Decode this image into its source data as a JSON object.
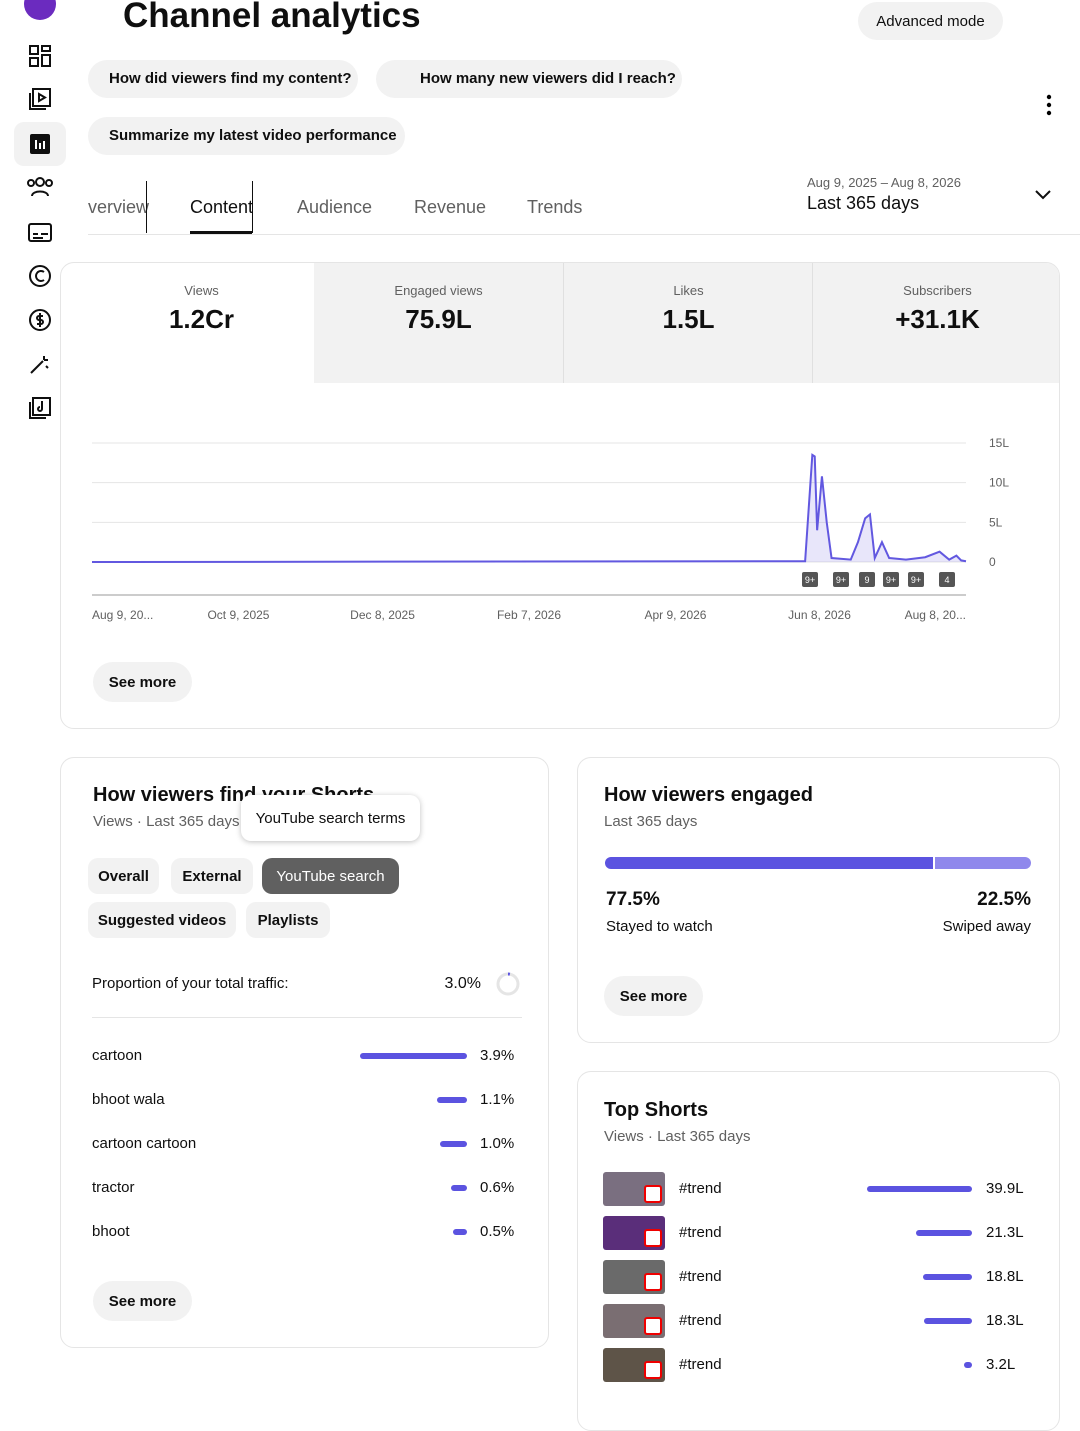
{
  "header": {
    "title": "Channel analytics",
    "advanced_mode": "Advanced mode"
  },
  "suggestions": [
    "How did viewers find my content?",
    "How many new viewers did I reach?",
    "Summarize my latest video performance"
  ],
  "tabs": {
    "items": [
      "verview",
      "Content",
      "Audience",
      "Revenue",
      "Trends"
    ],
    "selected": 1
  },
  "date_range": {
    "dates": "Aug 9, 2025 – Aug 8, 2026",
    "label": "Last 365 days"
  },
  "metrics": {
    "items": [
      {
        "label": "Views",
        "value": "1.2Cr"
      },
      {
        "label": "Engaged views",
        "value": "75.9L"
      },
      {
        "label": "Likes",
        "value": "1.5L"
      },
      {
        "label": "Subscribers",
        "value": "+31.1K"
      }
    ],
    "selected": 0
  },
  "chart_data": {
    "type": "line",
    "x": [
      "2025-08-09",
      "2026-06-02",
      "2026-06-05",
      "2026-06-06",
      "2026-06-07",
      "2026-06-09",
      "2026-06-11",
      "2026-06-13",
      "2026-06-21",
      "2026-06-24",
      "2026-06-27",
      "2026-06-29",
      "2026-07-01",
      "2026-07-04",
      "2026-07-07",
      "2026-07-14",
      "2026-07-22",
      "2026-07-28",
      "2026-08-01",
      "2026-08-04",
      "2026-08-06",
      "2026-08-08"
    ],
    "series": [
      {
        "name": "Views",
        "color": "#6258e0",
        "values": [
          0,
          0.1,
          13.5,
          13.3,
          4,
          10.8,
          5,
          0.5,
          0.3,
          2.5,
          5.5,
          6,
          0.5,
          2.5,
          0.5,
          0.3,
          0.6,
          1.3,
          0.3,
          0.8,
          0.2,
          0.1
        ]
      }
    ],
    "xlim": [
      "2025-08-09",
      "2026-08-08"
    ],
    "xticks": [
      {
        "value": "2025-08-09",
        "label": "Aug 9, 20..."
      },
      {
        "value": "2025-10-09",
        "label": "Oct 9, 2025"
      },
      {
        "value": "2025-12-08",
        "label": "Dec 8, 2025"
      },
      {
        "value": "2026-02-07",
        "label": "Feb 7, 2026"
      },
      {
        "value": "2026-04-09",
        "label": "Apr 9, 2026"
      },
      {
        "value": "2026-06-08",
        "label": "Jun 8, 2026"
      },
      {
        "value": "2026-08-08",
        "label": "Aug 8, 20..."
      }
    ],
    "ylim": [
      0,
      15
    ],
    "yticks": [
      {
        "value": 0,
        "label": "0"
      },
      {
        "value": 5,
        "label": "5L"
      },
      {
        "value": 10,
        "label": "10L"
      },
      {
        "value": 15,
        "label": "15L"
      }
    ],
    "grid": true,
    "markers": [
      "9+",
      "9+",
      "9",
      "9+",
      "9+",
      "4"
    ]
  },
  "overview_see_more": "See more",
  "traffic": {
    "title": "How viewers find your Shorts",
    "subtitle": "Views · Last 365 days",
    "tooltip": "YouTube search terms",
    "filters": [
      "Overall",
      "External",
      "YouTube search",
      "Suggested videos",
      "Playlists"
    ],
    "selected_filter": 2,
    "proportion_label": "Proportion of your total traffic:",
    "proportion": {
      "value": 3.0,
      "label": "3.0%"
    },
    "terms": [
      {
        "name": "cartoon",
        "value": 3.9,
        "label": "3.9%"
      },
      {
        "name": "bhoot wala",
        "value": 1.1,
        "label": "1.1%"
      },
      {
        "name": "cartoon cartoon",
        "value": 1.0,
        "label": "1.0%"
      },
      {
        "name": "tractor",
        "value": 0.6,
        "label": "0.6%"
      },
      {
        "name": "bhoot",
        "value": 0.5,
        "label": "0.5%"
      }
    ],
    "see_more": "See more"
  },
  "engagement": {
    "title": "How viewers engaged",
    "subtitle": "Last 365 days",
    "segments": [
      {
        "name": "Stayed to watch",
        "value": 77.5,
        "label": "77.5%",
        "color": "#5b53e0"
      },
      {
        "name": "Swiped away",
        "value": 22.5,
        "label": "22.5%",
        "color": "#8f88ec"
      }
    ],
    "see_more": "See more"
  },
  "top_shorts": {
    "title": "Top Shorts",
    "subtitle": "Views · Last 365 days",
    "items": [
      {
        "name": "#trend",
        "value": 39.9,
        "label": "39.9L"
      },
      {
        "name": "#trend",
        "value": 21.3,
        "label": "21.3L"
      },
      {
        "name": "#trend",
        "value": 18.8,
        "label": "18.8L"
      },
      {
        "name": "#trend",
        "value": 18.3,
        "label": "18.3L"
      },
      {
        "name": "#trend",
        "value": 3.2,
        "label": "3.2L"
      }
    ]
  }
}
